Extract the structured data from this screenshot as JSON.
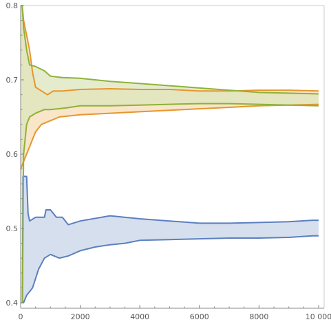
{
  "chart_data": {
    "type": "area",
    "grid": false,
    "xlim": [
      0,
      10000
    ],
    "ylim": [
      0.4,
      0.8
    ],
    "x_ticks": [
      0,
      2000,
      4000,
      6000,
      8000,
      10000
    ],
    "x_tick_labels": [
      "0",
      "2000",
      "4000",
      "6000",
      "8000",
      "10 000"
    ],
    "y_ticks": [
      0.4,
      0.5,
      0.6,
      0.7,
      0.8
    ],
    "y_tick_labels": [
      "0.4",
      "0.5",
      "0.6",
      "0.7",
      "0.8"
    ],
    "series": [
      {
        "color": "#5b7fbf",
        "fill": "#c8d4e8",
        "upper": [
          [
            0,
            0.4
          ],
          [
            60,
            0.4
          ],
          [
            80,
            0.57
          ],
          [
            200,
            0.57
          ],
          [
            250,
            0.52
          ],
          [
            300,
            0.51
          ],
          [
            500,
            0.515
          ],
          [
            800,
            0.515
          ],
          [
            850,
            0.525
          ],
          [
            1000,
            0.525
          ],
          [
            1200,
            0.515
          ],
          [
            1400,
            0.515
          ],
          [
            1600,
            0.505
          ],
          [
            2000,
            0.51
          ],
          [
            3000,
            0.517
          ],
          [
            4000,
            0.513
          ],
          [
            5000,
            0.51
          ],
          [
            6000,
            0.507
          ],
          [
            7000,
            0.507
          ],
          [
            8000,
            0.508
          ],
          [
            9000,
            0.509
          ],
          [
            9800,
            0.511
          ],
          [
            10000,
            0.511
          ]
        ],
        "lower": [
          [
            0,
            0.4
          ],
          [
            100,
            0.4
          ],
          [
            200,
            0.41
          ],
          [
            400,
            0.42
          ],
          [
            600,
            0.445
          ],
          [
            800,
            0.46
          ],
          [
            1000,
            0.465
          ],
          [
            1300,
            0.46
          ],
          [
            1600,
            0.463
          ],
          [
            2000,
            0.47
          ],
          [
            2500,
            0.475
          ],
          [
            3000,
            0.478
          ],
          [
            3500,
            0.48
          ],
          [
            4000,
            0.484
          ],
          [
            5000,
            0.485
          ],
          [
            6000,
            0.486
          ],
          [
            7000,
            0.487
          ],
          [
            8000,
            0.487
          ],
          [
            9000,
            0.488
          ],
          [
            9800,
            0.49
          ],
          [
            10000,
            0.49
          ]
        ]
      },
      {
        "color": "#e6962e",
        "fill": "#f7dcb5",
        "upper": [
          [
            0,
            0.8
          ],
          [
            50,
            0.8
          ],
          [
            100,
            0.78
          ],
          [
            200,
            0.76
          ],
          [
            300,
            0.74
          ],
          [
            400,
            0.71
          ],
          [
            500,
            0.69
          ],
          [
            700,
            0.685
          ],
          [
            900,
            0.68
          ],
          [
            1100,
            0.685
          ],
          [
            1400,
            0.685
          ],
          [
            2000,
            0.687
          ],
          [
            3000,
            0.688
          ],
          [
            4000,
            0.687
          ],
          [
            5000,
            0.687
          ],
          [
            6000,
            0.685
          ],
          [
            7000,
            0.685
          ],
          [
            8000,
            0.686
          ],
          [
            9000,
            0.686
          ],
          [
            10000,
            0.685
          ]
        ],
        "lower": [
          [
            0,
            0.58
          ],
          [
            100,
            0.59
          ],
          [
            300,
            0.61
          ],
          [
            500,
            0.63
          ],
          [
            700,
            0.64
          ],
          [
            1000,
            0.645
          ],
          [
            1300,
            0.65
          ],
          [
            2000,
            0.653
          ],
          [
            3000,
            0.655
          ],
          [
            4000,
            0.657
          ],
          [
            5000,
            0.659
          ],
          [
            6000,
            0.661
          ],
          [
            7000,
            0.663
          ],
          [
            8000,
            0.665
          ],
          [
            9000,
            0.666
          ],
          [
            10000,
            0.667
          ]
        ]
      },
      {
        "color": "#8fb13a",
        "fill": "#dce6bc",
        "upper": [
          [
            0,
            0.8
          ],
          [
            50,
            0.8
          ],
          [
            100,
            0.77
          ],
          [
            200,
            0.74
          ],
          [
            300,
            0.72
          ],
          [
            500,
            0.718
          ],
          [
            800,
            0.712
          ],
          [
            1000,
            0.705
          ],
          [
            1400,
            0.703
          ],
          [
            2000,
            0.702
          ],
          [
            3000,
            0.698
          ],
          [
            4000,
            0.695
          ],
          [
            5000,
            0.692
          ],
          [
            6000,
            0.689
          ],
          [
            7000,
            0.686
          ],
          [
            8000,
            0.683
          ],
          [
            9000,
            0.682
          ],
          [
            10000,
            0.681
          ]
        ],
        "lower": [
          [
            0,
            0.4
          ],
          [
            60,
            0.4
          ],
          [
            100,
            0.6
          ],
          [
            200,
            0.64
          ],
          [
            300,
            0.65
          ],
          [
            500,
            0.655
          ],
          [
            800,
            0.66
          ],
          [
            1000,
            0.66
          ],
          [
            1500,
            0.662
          ],
          [
            2000,
            0.665
          ],
          [
            3000,
            0.665
          ],
          [
            4000,
            0.666
          ],
          [
            5000,
            0.667
          ],
          [
            6000,
            0.668
          ],
          [
            7000,
            0.668
          ],
          [
            8000,
            0.667
          ],
          [
            9000,
            0.666
          ],
          [
            10000,
            0.665
          ]
        ]
      }
    ]
  }
}
